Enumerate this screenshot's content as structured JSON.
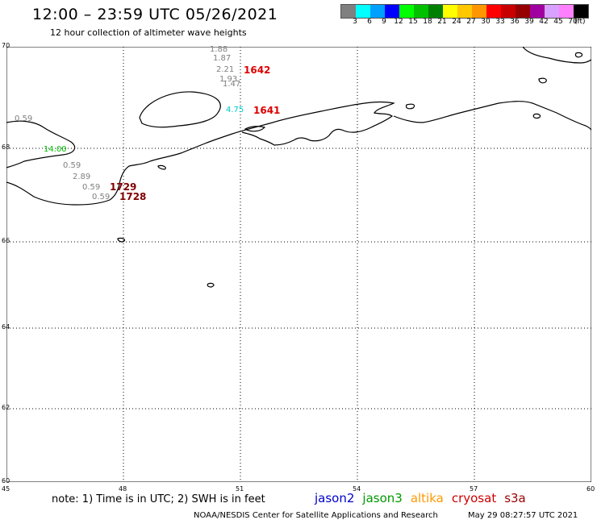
{
  "header": {
    "title": "12:00 – 23:59 UTC 05/26/2021",
    "subtitle": "12 hour collection of altimeter wave heights"
  },
  "color_scale": {
    "labels": [
      "3",
      "6",
      "9",
      "12",
      "15",
      "18",
      "21",
      "24",
      "27",
      "30",
      "33",
      "36",
      "39",
      "42",
      "45",
      "70"
    ],
    "unit": "(ft)",
    "colors": [
      "#808080",
      "#00ffff",
      "#00a0ff",
      "#0000ff",
      "#00ff00",
      "#00c000",
      "#008000",
      "#ffff00",
      "#ffc800",
      "#ff9600",
      "#ff0000",
      "#c80000",
      "#960000",
      "#a000a0",
      "#d8a0ff",
      "#ff80ff",
      "#000000"
    ]
  },
  "map": {
    "lat_labels": [
      "70",
      "68",
      "66",
      "64",
      "62",
      "60"
    ],
    "lon_labels": [
      "45",
      "48",
      "51",
      "54",
      "57",
      "60"
    ],
    "swh_observations": [
      {
        "value": "1.88",
        "color": "#808080"
      },
      {
        "value": "1.87",
        "color": "#808080"
      },
      {
        "value": "2.21",
        "color": "#808080"
      },
      {
        "value": "1.93",
        "color": "#808080"
      },
      {
        "value": "1.47",
        "color": "#808080"
      },
      {
        "value": "4.75",
        "color": "#00c8c8"
      },
      {
        "value": "0.59",
        "color": "#808080"
      },
      {
        "value": "14.00",
        "color": "#00c000"
      },
      {
        "value": "0.59",
        "color": "#808080"
      },
      {
        "value": "2.89",
        "color": "#808080"
      },
      {
        "value": "0.59",
        "color": "#808080"
      },
      {
        "value": "0.59",
        "color": "#808080"
      }
    ],
    "pass_times": [
      {
        "value": "1642",
        "color": "#dd0000"
      },
      {
        "value": "1641",
        "color": "#dd0000"
      },
      {
        "value": "1729",
        "color": "#800000"
      },
      {
        "value": "1728",
        "color": "#800000"
      }
    ]
  },
  "footer": {
    "note": "note:  1) Time is in UTC;  2) SWH is in feet",
    "missions": [
      {
        "name": "jason2",
        "color": "#0000cc"
      },
      {
        "name": "jason3",
        "color": "#009900"
      },
      {
        "name": "altika",
        "color": "#ff9900"
      },
      {
        "name": "cryosat",
        "color": "#cc0000"
      },
      {
        "name": "s3a",
        "color": "#990000"
      }
    ],
    "credit": "NOAA/NESDIS Center for Satellite Applications and Research",
    "timestamp": "May 29 08:27:57 UTC 2021"
  }
}
